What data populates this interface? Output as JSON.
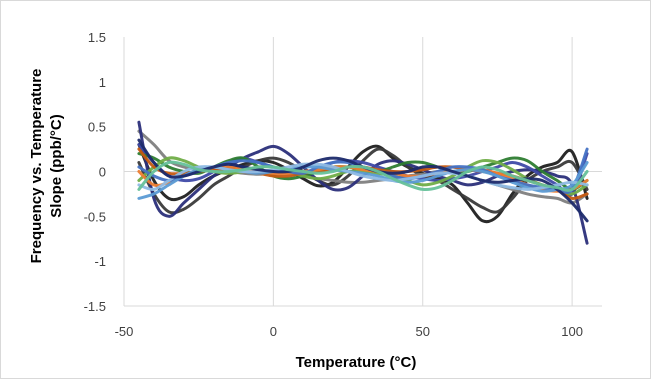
{
  "chart_data": {
    "type": "line",
    "title": "",
    "xlabel": "Temperature (°C)",
    "ylabel_line1": "Frequency vs. Temperature",
    "ylabel_line2": "Slope (ppb/°C)",
    "xlim": [
      -50,
      110
    ],
    "ylim": [
      -1.5,
      1.5
    ],
    "x_ticks": [
      -50,
      0,
      50,
      100
    ],
    "x_tick_labels": [
      "-50",
      "0",
      "50",
      "100"
    ],
    "y_ticks": [
      -1.5,
      -1,
      -0.5,
      0,
      0.5,
      1,
      1.5
    ],
    "y_tick_labels": [
      "-1.5",
      "-1",
      "-0.5",
      "0",
      "0.5",
      "1",
      "1.5"
    ],
    "grid": "vertical",
    "legend": "none",
    "x": [
      -45,
      -40,
      -35,
      -30,
      -25,
      -20,
      -15,
      -10,
      -5,
      0,
      5,
      10,
      15,
      20,
      25,
      30,
      35,
      40,
      45,
      50,
      55,
      60,
      65,
      70,
      75,
      80,
      85,
      90,
      95,
      100,
      105
    ],
    "series": [
      {
        "color": "#1f1f1f",
        "values": [
          0.3,
          -0.1,
          -0.3,
          -0.28,
          -0.15,
          -0.05,
          0.02,
          0.08,
          0.12,
          0.1,
          0.02,
          -0.08,
          -0.16,
          -0.12,
          0.05,
          0.22,
          0.28,
          0.15,
          0.05,
          -0.02,
          -0.08,
          -0.15,
          -0.35,
          -0.55,
          -0.5,
          -0.25,
          -0.05,
          0.05,
          0.1,
          0.22,
          -0.3
        ]
      },
      {
        "color": "#3a3a3a",
        "values": [
          0.1,
          -0.25,
          -0.45,
          -0.42,
          -0.3,
          -0.15,
          -0.05,
          0.05,
          0.12,
          0.15,
          0.1,
          0.0,
          -0.1,
          -0.15,
          -0.05,
          0.12,
          0.25,
          0.18,
          0.05,
          -0.05,
          -0.1,
          -0.2,
          -0.3,
          -0.4,
          -0.45,
          -0.3,
          -0.1,
          0.0,
          0.05,
          0.1,
          -0.2
        ]
      },
      {
        "color": "#808080",
        "values": [
          0.45,
          0.3,
          0.12,
          0.05,
          0.02,
          0.0,
          0.0,
          -0.02,
          -0.03,
          -0.02,
          -0.02,
          -0.05,
          -0.08,
          -0.1,
          -0.12,
          -0.12,
          -0.1,
          -0.08,
          -0.05,
          -0.03,
          0.0,
          0.0,
          -0.05,
          -0.1,
          -0.15,
          -0.2,
          -0.25,
          -0.28,
          -0.3,
          -0.35,
          -0.25
        ]
      },
      {
        "color": "#2b2f7a",
        "values": [
          0.55,
          -0.3,
          -0.5,
          -0.35,
          -0.2,
          -0.05,
          0.05,
          0.15,
          0.22,
          0.28,
          0.2,
          0.05,
          -0.1,
          -0.2,
          -0.18,
          -0.05,
          0.08,
          0.12,
          0.08,
          0.02,
          -0.05,
          -0.1,
          -0.15,
          -0.12,
          -0.05,
          0.0,
          0.02,
          0.0,
          -0.05,
          -0.15,
          -0.8
        ]
      },
      {
        "color": "#3f4aa8",
        "values": [
          0.3,
          0.1,
          -0.05,
          -0.1,
          -0.08,
          0.0,
          0.1,
          0.15,
          0.1,
          0.05,
          0.0,
          -0.05,
          0.02,
          0.1,
          0.12,
          0.1,
          0.05,
          0.0,
          -0.05,
          -0.08,
          -0.1,
          -0.08,
          -0.05,
          0.0,
          0.05,
          0.1,
          0.05,
          -0.05,
          -0.15,
          -0.25,
          0.2
        ]
      },
      {
        "color": "#2e7d32",
        "values": [
          0.2,
          0.15,
          0.05,
          0.0,
          -0.02,
          0.05,
          0.12,
          0.15,
          0.05,
          -0.05,
          -0.08,
          -0.05,
          0.0,
          0.05,
          0.05,
          0.02,
          0.0,
          0.05,
          0.1,
          0.1,
          0.05,
          0.0,
          0.0,
          0.05,
          0.1,
          0.15,
          0.12,
          0.0,
          -0.1,
          -0.2,
          -0.1
        ]
      },
      {
        "color": "#70ad47",
        "values": [
          -0.1,
          0.05,
          0.15,
          0.12,
          0.05,
          0.0,
          -0.02,
          0.0,
          0.05,
          0.05,
          0.0,
          -0.05,
          -0.08,
          -0.05,
          0.0,
          0.0,
          -0.02,
          -0.05,
          -0.1,
          -0.15,
          -0.12,
          -0.05,
          0.05,
          0.12,
          0.1,
          0.02,
          -0.08,
          -0.15,
          -0.2,
          -0.25,
          -0.15
        ]
      },
      {
        "color": "#c55a11",
        "values": [
          0.25,
          0.05,
          -0.02,
          -0.02,
          0.0,
          0.02,
          0.02,
          0.0,
          -0.02,
          -0.05,
          -0.05,
          -0.02,
          0.0,
          0.02,
          0.05,
          0.05,
          0.02,
          0.0,
          0.0,
          0.02,
          0.05,
          0.05,
          0.02,
          0.0,
          -0.02,
          -0.05,
          -0.1,
          -0.15,
          -0.2,
          -0.3,
          -0.25
        ]
      },
      {
        "color": "#ed7d31",
        "values": [
          0.0,
          -0.15,
          -0.12,
          -0.05,
          0.0,
          0.05,
          0.05,
          0.02,
          0.0,
          -0.02,
          -0.02,
          0.0,
          0.02,
          0.05,
          0.05,
          0.02,
          0.0,
          -0.02,
          -0.05,
          -0.05,
          -0.02,
          0.0,
          0.02,
          0.02,
          -0.02,
          -0.08,
          -0.15,
          -0.2,
          -0.22,
          -0.2,
          -0.1
        ]
      },
      {
        "color": "#4472c4",
        "values": [
          0.05,
          -0.05,
          -0.1,
          -0.05,
          0.0,
          0.05,
          0.1,
          0.12,
          0.1,
          0.05,
          0.0,
          -0.02,
          0.05,
          0.1,
          0.1,
          0.05,
          0.0,
          -0.05,
          -0.08,
          -0.05,
          0.0,
          0.05,
          0.05,
          0.02,
          -0.05,
          -0.1,
          -0.15,
          -0.18,
          -0.2,
          -0.2,
          0.25
        ]
      },
      {
        "color": "#5b9bd5",
        "values": [
          -0.3,
          -0.25,
          -0.15,
          -0.05,
          0.02,
          0.05,
          0.02,
          0.0,
          -0.02,
          0.0,
          0.02,
          0.05,
          0.05,
          0.02,
          0.0,
          -0.02,
          -0.05,
          -0.1,
          -0.12,
          -0.1,
          -0.05,
          0.0,
          0.02,
          0.0,
          -0.05,
          -0.12,
          -0.18,
          -0.22,
          -0.2,
          -0.15,
          0.1
        ]
      },
      {
        "color": "#8fbbe4",
        "values": [
          -0.15,
          -0.2,
          -0.1,
          0.0,
          0.05,
          0.05,
          0.02,
          0.0,
          0.0,
          0.02,
          0.05,
          0.08,
          0.08,
          0.05,
          0.0,
          -0.05,
          -0.08,
          -0.1,
          -0.08,
          -0.05,
          -0.02,
          -0.02,
          -0.05,
          -0.1,
          -0.15,
          -0.18,
          -0.2,
          -0.18,
          -0.15,
          -0.12,
          -0.15
        ]
      },
      {
        "color": "#1c2a6b",
        "values": [
          0.35,
          0.1,
          -0.05,
          -0.05,
          0.0,
          0.05,
          0.08,
          0.05,
          0.02,
          0.0,
          0.0,
          0.05,
          0.12,
          0.15,
          0.12,
          0.05,
          0.0,
          -0.02,
          0.0,
          0.05,
          0.05,
          0.0,
          -0.05,
          -0.1,
          -0.12,
          -0.1,
          -0.08,
          -0.1,
          -0.2,
          -0.35,
          -0.55
        ]
      },
      {
        "color": "#66c19a",
        "values": [
          -0.2,
          0.0,
          0.1,
          0.08,
          0.02,
          0.0,
          0.0,
          0.02,
          0.05,
          0.05,
          0.02,
          0.0,
          -0.02,
          0.0,
          0.05,
          0.05,
          0.0,
          -0.08,
          -0.15,
          -0.2,
          -0.18,
          -0.1,
          0.0,
          0.05,
          0.02,
          -0.05,
          -0.1,
          -0.15,
          -0.18,
          -0.2,
          0.0
        ]
      }
    ]
  }
}
